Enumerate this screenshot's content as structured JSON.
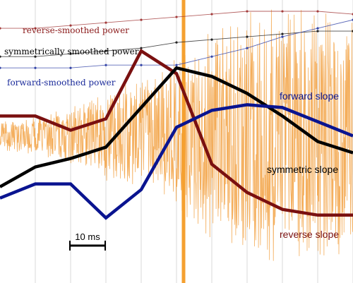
{
  "chart_data": {
    "type": "line",
    "grid": true,
    "x": [
      0,
      1,
      2,
      3,
      4,
      5,
      6,
      7,
      8,
      9,
      10
    ],
    "xlim": [
      0,
      10
    ],
    "ylim": [
      0,
      1
    ],
    "cursor_x": 5.2,
    "series": [
      {
        "name": "reverse slope",
        "color": "#7a1010",
        "values": [
          0.59,
          0.59,
          0.54,
          0.58,
          0.82,
          0.74,
          0.42,
          0.32,
          0.26,
          0.24,
          0.24
        ]
      },
      {
        "name": "symmetric slope",
        "color": "#000000",
        "values": [
          0.34,
          0.41,
          0.44,
          0.48,
          0.62,
          0.76,
          0.73,
          0.67,
          0.59,
          0.5,
          0.46
        ]
      },
      {
        "name": "forward slope",
        "color": "#0a1490",
        "values": [
          0.3,
          0.35,
          0.35,
          0.23,
          0.33,
          0.55,
          0.61,
          0.63,
          0.62,
          0.57,
          0.52
        ]
      }
    ],
    "series_labels": {
      "reverse": "reverse slope",
      "symmetric": "symmetric slope",
      "forward": "forward slope"
    },
    "smoothed_power": [
      {
        "name": "reverse-smoothed power",
        "color": "#a33a3a",
        "values": [
          0.9,
          0.9,
          0.91,
          0.92,
          0.93,
          0.94,
          0.95,
          0.96,
          0.96,
          0.96,
          0.95
        ]
      },
      {
        "name": "symmetrically smoothed power",
        "color": "#222222",
        "values": [
          0.8,
          0.8,
          0.81,
          0.82,
          0.83,
          0.85,
          0.86,
          0.87,
          0.88,
          0.89,
          0.89
        ]
      },
      {
        "name": "forward-smoothed power",
        "color": "#3545a8",
        "values": [
          0.76,
          0.76,
          0.76,
          0.77,
          0.77,
          0.77,
          0.8,
          0.83,
          0.87,
          0.9,
          0.93
        ]
      }
    ],
    "signal": {
      "name": "raw waveform",
      "color": "#f2a040",
      "envelope": [
        0.05,
        0.07,
        0.1,
        0.16,
        0.2,
        0.28,
        0.38,
        0.45,
        0.45,
        0.45,
        0.45
      ],
      "center": 0.52
    },
    "scale_bar": {
      "label": "10 ms"
    }
  }
}
